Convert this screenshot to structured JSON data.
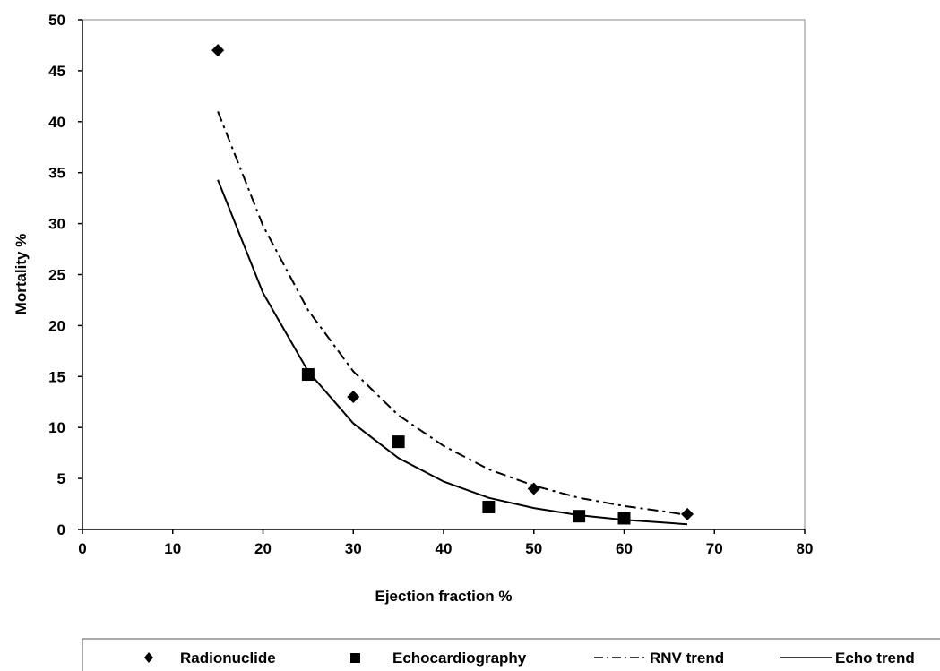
{
  "chart_data": {
    "type": "scatter",
    "title": "",
    "xlabel": "Ejection fraction %",
    "ylabel": "Mortality %",
    "xlim": [
      0,
      80
    ],
    "ylim": [
      0,
      50
    ],
    "x_ticks": [
      0,
      10,
      20,
      30,
      40,
      50,
      60,
      70,
      80
    ],
    "y_ticks": [
      0,
      5,
      10,
      15,
      20,
      25,
      30,
      35,
      40,
      45,
      50
    ],
    "grid": false,
    "legend_position": "bottom",
    "series": [
      {
        "name": "Radionuclide",
        "kind": "points",
        "marker": "diamond",
        "color": "#000000",
        "x": [
          15,
          30,
          50,
          67
        ],
        "y": [
          47,
          13,
          4,
          1.5
        ]
      },
      {
        "name": "Echocardiography",
        "kind": "points",
        "marker": "square",
        "color": "#000000",
        "x": [
          25,
          35,
          45,
          55,
          60
        ],
        "y": [
          15.2,
          8.6,
          2.2,
          1.3,
          1.1
        ]
      },
      {
        "name": "RNV trend",
        "kind": "trendline",
        "style": "dash-dot",
        "color": "#000000",
        "x": [
          15,
          20,
          25,
          30,
          35,
          40,
          45,
          50,
          55,
          60,
          65,
          67
        ],
        "y": [
          41.0,
          29.8,
          21.5,
          15.5,
          11.2,
          8.2,
          5.9,
          4.3,
          3.1,
          2.3,
          1.7,
          1.4
        ]
      },
      {
        "name": "Echo trend",
        "kind": "trendline",
        "style": "solid",
        "color": "#000000",
        "x": [
          15,
          20,
          25,
          30,
          35,
          40,
          45,
          50,
          55,
          60,
          65,
          67
        ],
        "y": [
          34.3,
          23.2,
          15.5,
          10.4,
          7.0,
          4.7,
          3.1,
          2.1,
          1.4,
          0.95,
          0.63,
          0.5
        ]
      }
    ]
  }
}
